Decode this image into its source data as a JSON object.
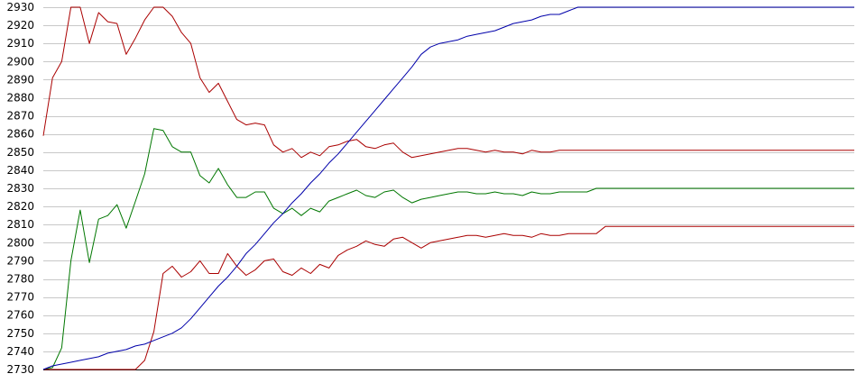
{
  "chart_data": {
    "type": "line",
    "title": "",
    "xlabel": "",
    "ylabel": "",
    "x": [
      0,
      1,
      2,
      3,
      4,
      5,
      6,
      7,
      8,
      9,
      10,
      11,
      12,
      13,
      14,
      15,
      16,
      17,
      18,
      19,
      20,
      21,
      22,
      23,
      24,
      25,
      26,
      27,
      28,
      29,
      30,
      31,
      32,
      33,
      34,
      35,
      36,
      37,
      38,
      39,
      40,
      41,
      42,
      43,
      44,
      45,
      46,
      47,
      48,
      49,
      50,
      51,
      52,
      53,
      54,
      55,
      56,
      57,
      58,
      59,
      60,
      61,
      62,
      63,
      64,
      65,
      66,
      67,
      68,
      69,
      70,
      71,
      72,
      73,
      74,
      75,
      76,
      77,
      78,
      79,
      80,
      81,
      82,
      83,
      84,
      85,
      86,
      87,
      88
    ],
    "xlim": [
      0,
      88
    ],
    "ylim": [
      2730,
      2930
    ],
    "yticks": [
      2730,
      2740,
      2750,
      2760,
      2770,
      2780,
      2790,
      2800,
      2810,
      2820,
      2830,
      2840,
      2850,
      2860,
      2870,
      2880,
      2890,
      2900,
      2910,
      2920,
      2930
    ],
    "grid": true,
    "colors": {
      "grid": "#c8c8c8",
      "axis": "#000000"
    },
    "series": [
      {
        "name": "",
        "color": "#aa0000",
        "values": [
          2859,
          2891,
          2900,
          2930,
          2930,
          2910,
          2927,
          2922,
          2921,
          2904,
          2913,
          2923,
          2930,
          2930,
          2925,
          2916,
          2910,
          2891,
          2883,
          2888,
          2878,
          2868,
          2865,
          2866,
          2865,
          2854,
          2850,
          2852,
          2847,
          2850,
          2848,
          2853,
          2854,
          2856,
          2857,
          2853,
          2852,
          2854,
          2855,
          2850,
          2847,
          2848,
          2849,
          2850,
          2851,
          2852,
          2852,
          2851,
          2850,
          2851,
          2850,
          2850,
          2849,
          2851,
          2850,
          2850,
          2851,
          2851,
          2851,
          2851,
          2851,
          2851,
          2851,
          2851,
          2851,
          2851,
          2851,
          2851,
          2851,
          2851,
          2851,
          2851,
          2851,
          2851,
          2851,
          2851,
          2851,
          2851,
          2851,
          2851,
          2851,
          2851,
          2851,
          2851,
          2851,
          2851,
          2851,
          2851,
          2851
        ]
      },
      {
        "name": "",
        "color": "#007700",
        "values": [
          2730,
          2731,
          2742,
          2790,
          2818,
          2789,
          2813,
          2815,
          2821,
          2808,
          2823,
          2838,
          2863,
          2862,
          2853,
          2850,
          2850,
          2837,
          2833,
          2841,
          2832,
          2825,
          2825,
          2828,
          2828,
          2819,
          2816,
          2819,
          2815,
          2819,
          2817,
          2823,
          2825,
          2827,
          2829,
          2826,
          2825,
          2828,
          2829,
          2825,
          2822,
          2824,
          2825,
          2826,
          2827,
          2828,
          2828,
          2827,
          2827,
          2828,
          2827,
          2827,
          2826,
          2828,
          2827,
          2827,
          2828,
          2828,
          2828,
          2828,
          2830,
          2830,
          2830,
          2830,
          2830,
          2830,
          2830,
          2830,
          2830,
          2830,
          2830,
          2830,
          2830,
          2830,
          2830,
          2830,
          2830,
          2830,
          2830,
          2830,
          2830,
          2830,
          2830,
          2830,
          2830,
          2830,
          2830,
          2830,
          2830
        ]
      },
      {
        "name": "",
        "color": "#aa0000",
        "values": [
          2730,
          2730,
          2730,
          2730,
          2730,
          2730,
          2730,
          2730,
          2730,
          2730,
          2730,
          2735,
          2751,
          2783,
          2787,
          2781,
          2784,
          2790,
          2783,
          2783,
          2794,
          2787,
          2782,
          2785,
          2790,
          2791,
          2784,
          2782,
          2786,
          2783,
          2788,
          2786,
          2793,
          2796,
          2798,
          2801,
          2799,
          2798,
          2802,
          2803,
          2800,
          2797,
          2800,
          2801,
          2802,
          2803,
          2804,
          2804,
          2803,
          2804,
          2805,
          2804,
          2804,
          2803,
          2805,
          2804,
          2804,
          2805,
          2805,
          2805,
          2805,
          2809,
          2809,
          2809,
          2809,
          2809,
          2809,
          2809,
          2809,
          2809,
          2809,
          2809,
          2809,
          2809,
          2809,
          2809,
          2809,
          2809,
          2809,
          2809,
          2809,
          2809,
          2809,
          2809,
          2809,
          2809,
          2809,
          2809,
          2809
        ]
      },
      {
        "name": "",
        "color": "#0000aa",
        "values": [
          2730,
          2732,
          2733,
          2734,
          2735,
          2736,
          2737,
          2739,
          2740,
          2741,
          2743,
          2744,
          2746,
          2748,
          2750,
          2753,
          2758,
          2764,
          2770,
          2776,
          2781,
          2787,
          2794,
          2799,
          2805,
          2811,
          2816,
          2822,
          2827,
          2833,
          2838,
          2844,
          2849,
          2855,
          2861,
          2867,
          2873,
          2879,
          2885,
          2891,
          2897,
          2904,
          2908,
          2910,
          2911,
          2912,
          2914,
          2915,
          2916,
          2917,
          2919,
          2921,
          2922,
          2923,
          2925,
          2926,
          2926,
          2928,
          2930,
          2930,
          2930,
          2930,
          2930,
          2930,
          2930,
          2930,
          2930,
          2930,
          2930,
          2930,
          2930,
          2930,
          2930,
          2930,
          2930,
          2930,
          2930,
          2930,
          2930,
          2930,
          2930,
          2930,
          2930,
          2930,
          2930,
          2930,
          2930,
          2930,
          2930
        ]
      }
    ]
  }
}
